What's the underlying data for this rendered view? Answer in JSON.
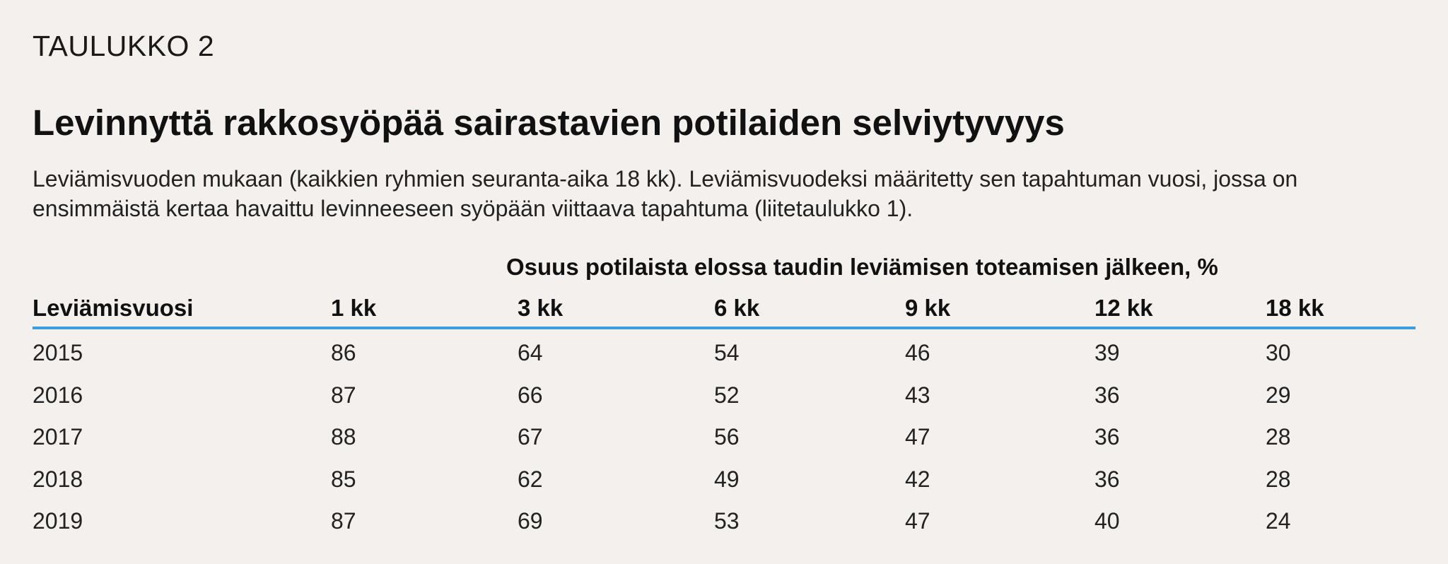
{
  "header": {
    "table_label": "TAULUKKO 2",
    "title": "Levinnyttä rakkosyöpää sairastavien potilaiden selviytyvyys",
    "subtitle": "Leviämisvuoden mukaan (kaikkien ryhmien seuranta-aika 18 kk). Leviämisvuodeksi määritetty sen tapahtuman vuosi, jossa on ensimmäistä kertaa havaittu levinneeseen syöpään viittaava tapahtuma (liitetaulukko 1)."
  },
  "table": {
    "group_header": "Osuus potilaista elossa taudin leviämisen toteamisen jälkeen, %",
    "columns": [
      "Leviämisvuosi",
      "1 kk",
      "3 kk",
      "6 kk",
      "9 kk",
      "12 kk",
      "18 kk"
    ],
    "rows": [
      [
        "2015",
        "86",
        "64",
        "54",
        "46",
        "39",
        "30"
      ],
      [
        "2016",
        "87",
        "66",
        "52",
        "43",
        "36",
        "29"
      ],
      [
        "2017",
        "88",
        "67",
        "56",
        "47",
        "36",
        "28"
      ],
      [
        "2018",
        "85",
        "62",
        "49",
        "42",
        "36",
        "28"
      ],
      [
        "2019",
        "87",
        "69",
        "53",
        "47",
        "40",
        "24"
      ]
    ]
  },
  "colors": {
    "background": "#f3f0ed",
    "header_rule": "#3a9fd8",
    "text": "#1a1a1a"
  }
}
